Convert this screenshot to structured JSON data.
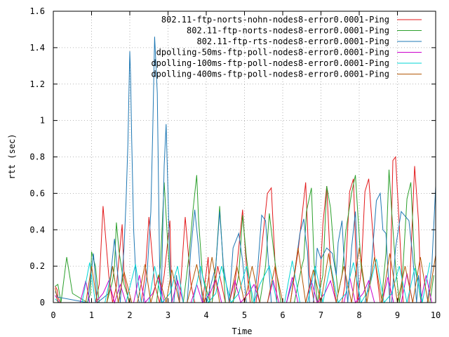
{
  "chart_data": {
    "type": "line",
    "title": "",
    "xlabel": "Time",
    "ylabel": "rtt (sec)",
    "xlim": [
      0,
      10
    ],
    "ylim": [
      0,
      1.6
    ],
    "xticks": [
      "0",
      "1",
      "2",
      "3",
      "4",
      "5",
      "6",
      "7",
      "8",
      "9",
      "10"
    ],
    "yticks": [
      "0",
      "0.2",
      "0.4",
      "0.6",
      "0.8",
      "1",
      "1.2",
      "1.4",
      "1.6"
    ],
    "grid": true,
    "legend_position": "top-right",
    "series": [
      {
        "name": "802.11-ftp-norts-nohn-nodes8-error0.0001-Ping",
        "color": "#e31a1c",
        "x": [
          0.05,
          0.1,
          0.12,
          0.18,
          0.95,
          1.1,
          1.2,
          1.3,
          1.45,
          1.55,
          1.65,
          1.8,
          1.85,
          1.98,
          2.1,
          2.3,
          2.4,
          2.5,
          2.65,
          2.78,
          2.9,
          3.05,
          3.1,
          3.2,
          3.3,
          3.45,
          3.6,
          3.7,
          3.82,
          3.9,
          4.05,
          4.1,
          4.15,
          4.3,
          4.5,
          4.6,
          4.7,
          4.85,
          4.95,
          5.05,
          5.15,
          5.3,
          5.45,
          5.6,
          5.7,
          5.78,
          5.85,
          6.05,
          6.2,
          6.4,
          6.5,
          6.6,
          6.7,
          6.82,
          6.95,
          7.05,
          7.15,
          7.25,
          7.4,
          7.55,
          7.62,
          7.75,
          7.85,
          7.95,
          8.05,
          8.15,
          8.25,
          8.4,
          8.55,
          8.7,
          8.8,
          8.88,
          8.95,
          9.05,
          9.15,
          9.3,
          9.45,
          9.55,
          9.62,
          9.75,
          9.9
        ],
        "y": [
          0.09,
          0.07,
          0.03,
          0,
          0,
          0,
          0.1,
          0.53,
          0.15,
          0,
          0.09,
          0.43,
          0.15,
          0,
          0,
          0,
          0.15,
          0.47,
          0.1,
          0,
          0.15,
          0.45,
          0,
          0,
          0,
          0.47,
          0.1,
          0,
          0,
          0,
          0.25,
          0,
          0,
          0.2,
          0,
          0,
          0,
          0.3,
          0.51,
          0.2,
          0,
          0,
          0.3,
          0.6,
          0.63,
          0.3,
          0,
          0,
          0,
          0.28,
          0.47,
          0.66,
          0.15,
          0,
          0,
          0.43,
          0.64,
          0.2,
          0,
          0,
          0.09,
          0.61,
          0.68,
          0,
          0.17,
          0.61,
          0.68,
          0.26,
          0,
          0,
          0,
          0.78,
          0.8,
          0.42,
          0,
          0,
          0.75,
          0.45,
          0,
          0,
          0
        ]
      },
      {
        "name": "802.11-ftp-norts-nodes8-error0.0001-Ping",
        "color": "#2ca02c",
        "x": [
          0.05,
          0.12,
          0.2,
          0.35,
          0.5,
          0.9,
          0.97,
          1.0,
          1.1,
          1.2,
          1.4,
          1.55,
          1.6,
          1.65,
          1.72,
          1.85,
          2.0,
          2.2,
          2.3,
          2.45,
          2.55,
          2.7,
          2.8,
          2.9,
          3.0,
          3.1,
          3.4,
          3.55,
          3.65,
          3.75,
          3.8,
          3.9,
          4.1,
          4.15,
          4.25,
          4.35,
          4.5,
          4.7,
          4.85,
          4.95,
          5.05,
          5.2,
          5.3,
          5.4,
          5.55,
          5.65,
          5.8,
          5.95,
          6.1,
          6.3,
          6.5,
          6.55,
          6.62,
          6.75,
          6.82,
          6.9,
          7.05,
          7.15,
          7.25,
          7.35,
          7.45,
          7.55,
          7.65,
          7.8,
          7.9,
          8.05,
          8.2,
          8.4,
          8.58,
          8.7,
          8.78,
          8.85,
          8.95,
          9.05,
          9.12,
          9.25,
          9.35,
          9.45,
          9.55,
          9.62,
          9.7,
          9.85,
          9.95
        ],
        "y": [
          0.09,
          0.1,
          0,
          0.25,
          0.05,
          0,
          0.05,
          0.28,
          0.2,
          0,
          0,
          0.12,
          0.2,
          0.44,
          0.28,
          0.1,
          0,
          0,
          0,
          0,
          0,
          0,
          0.2,
          0.66,
          0.3,
          0,
          0,
          0.26,
          0.5,
          0.7,
          0.45,
          0.15,
          0,
          0,
          0.2,
          0.53,
          0,
          0,
          0.15,
          0.48,
          0.25,
          0,
          0,
          0,
          0.2,
          0.49,
          0.22,
          0,
          0,
          0,
          0.2,
          0.24,
          0.5,
          0.63,
          0.22,
          0,
          0.15,
          0.64,
          0.52,
          0.25,
          0.05,
          0.15,
          0.39,
          0.6,
          0.7,
          0.2,
          0,
          0,
          0,
          0.27,
          0.73,
          0.5,
          0.2,
          0,
          0.1,
          0.57,
          0.66,
          0.22,
          0.1,
          0,
          0,
          0,
          0.15
        ]
      },
      {
        "name": "802.11-ftp-rts-nodes8-error0.0001-Ping",
        "color": "#1f78b4",
        "x": [
          0.05,
          0.12,
          0.9,
          1.05,
          1.15,
          1.45,
          1.6,
          1.75,
          1.85,
          1.9,
          1.95,
          2.0,
          2.02,
          2.05,
          2.1,
          2.18,
          2.25,
          2.35,
          2.45,
          2.55,
          2.6,
          2.65,
          2.72,
          2.78,
          2.82,
          2.9,
          2.95,
          3.0,
          3.05,
          3.1,
          3.15,
          3.22,
          3.3,
          3.5,
          3.6,
          3.7,
          3.8,
          3.9,
          4.0,
          4.25,
          4.35,
          4.45,
          4.6,
          4.7,
          4.85,
          4.95,
          5.05,
          5.25,
          5.35,
          5.45,
          5.55,
          5.6,
          5.7,
          5.85,
          6.1,
          6.3,
          6.45,
          6.55,
          6.6,
          6.65,
          6.7,
          6.8,
          6.9,
          7.0,
          7.15,
          7.3,
          7.4,
          7.45,
          7.55,
          7.6,
          7.7,
          7.8,
          7.9,
          8.0,
          8.15,
          8.3,
          8.45,
          8.55,
          8.62,
          8.7,
          8.8,
          8.85,
          8.95,
          9.1,
          9.3,
          9.4,
          9.5,
          9.55,
          9.65,
          9.78,
          9.9,
          10.0
        ],
        "y": [
          0.06,
          0.03,
          0,
          0.27,
          0,
          0.05,
          0.35,
          0,
          0.3,
          0.55,
          0.87,
          1.38,
          1.25,
          0.9,
          0.4,
          0.05,
          0,
          0,
          0.15,
          0.5,
          0.94,
          1.46,
          1.15,
          0.2,
          0,
          0.75,
          0.98,
          0.6,
          0.2,
          0,
          0,
          0.15,
          0,
          0,
          0.3,
          0.51,
          0.3,
          0,
          0,
          0.2,
          0.5,
          0.2,
          0,
          0.3,
          0.38,
          0.23,
          0,
          0,
          0.2,
          0.48,
          0.45,
          0.3,
          0,
          0,
          0,
          0.15,
          0.38,
          0.46,
          0.35,
          0.28,
          0,
          0,
          0.3,
          0.24,
          0.3,
          0.27,
          0.15,
          0.33,
          0.45,
          0.25,
          0,
          0.3,
          0.5,
          0,
          0,
          0.15,
          0.56,
          0.6,
          0.4,
          0.38,
          0,
          0,
          0.3,
          0.5,
          0.45,
          0.25,
          0,
          0.15,
          0,
          0,
          0.2,
          0.64
        ]
      },
      {
        "name": "dpolling-50ms-ftp-poll-nodes8-error0.0001-Ping",
        "color": "#cc00cc",
        "x": [
          0.05,
          0.15,
          0.7,
          0.85,
          0.95,
          1.1,
          1.3,
          1.45,
          1.6,
          1.75,
          1.9,
          2.1,
          2.25,
          2.4,
          2.6,
          2.75,
          2.9,
          3.1,
          3.25,
          3.4,
          3.6,
          3.75,
          3.9,
          4.1,
          4.25,
          4.4,
          4.6,
          4.75,
          4.9,
          5.1,
          5.25,
          5.4,
          5.6,
          5.75,
          5.9,
          6.1,
          6.25,
          6.4,
          6.6,
          6.75,
          6.9,
          7.1,
          7.25,
          7.4,
          7.6,
          7.75,
          7.9,
          8.1,
          8.25,
          8.4,
          8.6,
          8.75,
          8.9,
          9.1,
          9.25,
          9.4,
          9.6,
          9.75,
          9.9
        ],
        "y": [
          0.04,
          0,
          0,
          0.12,
          0,
          0,
          0.05,
          0.12,
          0,
          0.1,
          0,
          0,
          0.15,
          0,
          0.05,
          0.14,
          0,
          0,
          0.12,
          0,
          0,
          0.1,
          0,
          0.05,
          0.13,
          0,
          0,
          0.12,
          0,
          0.05,
          0.1,
          0,
          0,
          0.12,
          0,
          0,
          0.14,
          0,
          0,
          0.12,
          0,
          0.05,
          0.12,
          0,
          0,
          0.14,
          0,
          0.05,
          0.12,
          0,
          0,
          0.14,
          0,
          0,
          0.16,
          0,
          0,
          0.15,
          0
        ]
      },
      {
        "name": "dpolling-100ms-ftp-poll-nodes8-error0.0001-Ping",
        "color": "#00d5d5",
        "x": [
          0.05,
          0.15,
          0.75,
          0.95,
          1.1,
          1.35,
          1.55,
          1.7,
          1.9,
          2.15,
          2.3,
          2.5,
          2.65,
          2.85,
          3.05,
          3.25,
          3.4,
          3.65,
          3.85,
          4.05,
          4.25,
          4.4,
          4.65,
          4.85,
          5.05,
          5.25,
          5.4,
          5.65,
          5.85,
          6.05,
          6.25,
          6.45,
          6.65,
          6.85,
          7.05,
          7.25,
          7.45,
          7.65,
          7.85,
          8.05,
          8.25,
          8.45,
          8.65,
          8.85,
          9.05,
          9.25,
          9.45,
          9.65,
          9.85
        ],
        "y": [
          0.02,
          0,
          0,
          0.22,
          0,
          0,
          0.2,
          0,
          0,
          0.21,
          0,
          0,
          0.2,
          0,
          0.05,
          0.2,
          0,
          0,
          0.2,
          0,
          0.05,
          0.2,
          0,
          0.05,
          0.2,
          0,
          0.1,
          0.2,
          0,
          0,
          0.23,
          0,
          0,
          0.2,
          0,
          0.21,
          0,
          0.05,
          0.22,
          0,
          0.07,
          0.24,
          0,
          0.05,
          0.2,
          0,
          0.19,
          0,
          0.22
        ]
      },
      {
        "name": "dpolling-400ms-ftp-poll-nodes8-error0.0001-Ping",
        "color": "#b35806",
        "x": [
          0.05,
          0.12,
          0.85,
          1.0,
          1.15,
          1.4,
          1.55,
          1.7,
          1.85,
          2.05,
          2.2,
          2.4,
          2.55,
          2.75,
          2.95,
          3.1,
          3.3,
          3.5,
          3.75,
          3.95,
          4.15,
          4.35,
          4.6,
          4.8,
          5.0,
          5.2,
          5.4,
          5.6,
          5.8,
          6.0,
          6.2,
          6.4,
          6.6,
          6.8,
          7.0,
          7.2,
          7.4,
          7.6,
          7.8,
          8.0,
          8.2,
          8.4,
          8.6,
          8.8,
          9.0,
          9.2,
          9.4,
          9.6,
          9.8,
          10.0
        ],
        "y": [
          0.08,
          0,
          0,
          0.2,
          0,
          0,
          0.2,
          0,
          0.17,
          0,
          0,
          0.21,
          0,
          0.15,
          0,
          0.18,
          0,
          0,
          0.21,
          0,
          0.25,
          0,
          0,
          0.2,
          0,
          0.2,
          0,
          0,
          0.2,
          0,
          0,
          0.3,
          0,
          0.18,
          0,
          0.27,
          0,
          0.2,
          0,
          0.3,
          0,
          0.25,
          0,
          0.27,
          0,
          0.2,
          0,
          0.25,
          0,
          0.26
        ]
      }
    ]
  }
}
